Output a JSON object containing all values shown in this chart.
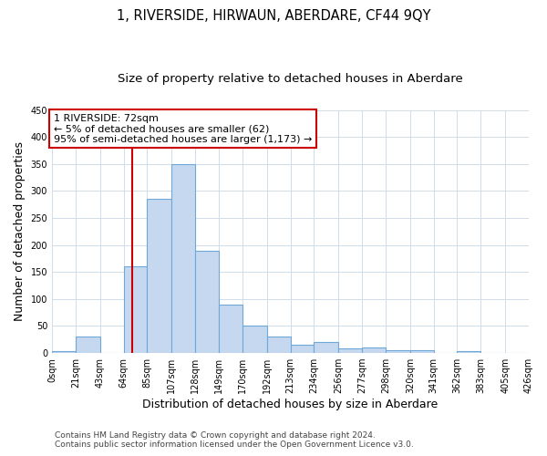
{
  "title": "1, RIVERSIDE, HIRWAUN, ABERDARE, CF44 9QY",
  "subtitle": "Size of property relative to detached houses in Aberdare",
  "xlabel": "Distribution of detached houses by size in Aberdare",
  "ylabel": "Number of detached properties",
  "bar_values": [
    3,
    30,
    0,
    160,
    285,
    350,
    190,
    90,
    50,
    30,
    15,
    20,
    8,
    10,
    5,
    5,
    0,
    3,
    0,
    0
  ],
  "bin_edges": [
    0,
    21,
    43,
    64,
    85,
    107,
    128,
    149,
    170,
    192,
    213,
    234,
    256,
    277,
    298,
    320,
    341,
    362,
    383,
    405,
    426
  ],
  "tick_labels": [
    "0sqm",
    "21sqm",
    "43sqm",
    "64sqm",
    "85sqm",
    "107sqm",
    "128sqm",
    "149sqm",
    "170sqm",
    "192sqm",
    "213sqm",
    "234sqm",
    "256sqm",
    "277sqm",
    "298sqm",
    "320sqm",
    "341sqm",
    "362sqm",
    "383sqm",
    "405sqm",
    "426sqm"
  ],
  "bar_color": "#c5d8f0",
  "bar_edge_color": "#6fa8d8",
  "vline_x": 72,
  "vline_color": "#cc0000",
  "ylim": [
    0,
    450
  ],
  "yticks": [
    0,
    50,
    100,
    150,
    200,
    250,
    300,
    350,
    400,
    450
  ],
  "annotation_title": "1 RIVERSIDE: 72sqm",
  "annotation_line1": "← 5% of detached houses are smaller (62)",
  "annotation_line2": "95% of semi-detached houses are larger (1,173) →",
  "annotation_box_color": "#ffffff",
  "annotation_box_edge": "#cc0000",
  "footer_line1": "Contains HM Land Registry data © Crown copyright and database right 2024.",
  "footer_line2": "Contains public sector information licensed under the Open Government Licence v3.0.",
  "background_color": "#ffffff",
  "grid_color": "#d0dce8",
  "title_fontsize": 10.5,
  "subtitle_fontsize": 9.5,
  "axis_label_fontsize": 9,
  "tick_fontsize": 7,
  "annotation_fontsize": 8,
  "footer_fontsize": 6.5
}
